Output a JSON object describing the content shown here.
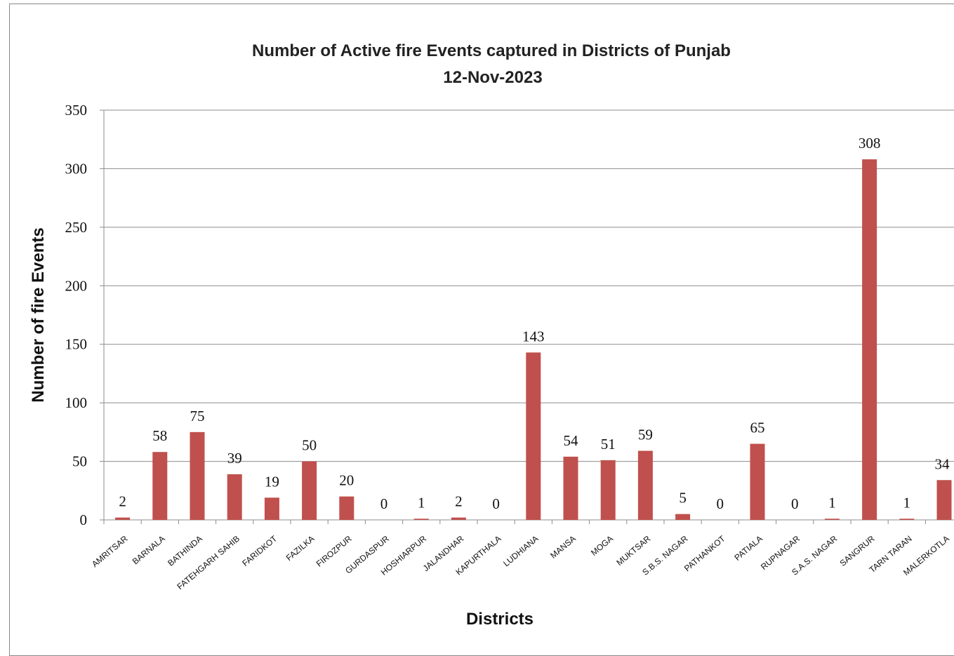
{
  "chart_data": {
    "type": "bar",
    "title": "Number of Active fire Events captured  in Districts of Punjab",
    "subtitle": "12-Nov-2023",
    "xlabel": "Districts",
    "ylabel": "Number of fire Events",
    "ylim": [
      0,
      350
    ],
    "yticks": [
      0,
      50,
      100,
      150,
      200,
      250,
      300,
      350
    ],
    "grid": true,
    "bar_color": "#c0504d",
    "categories": [
      "AMRITSAR",
      "BARNALA",
      "BATHINDA",
      "FATEHGARH SAHIB",
      "FARIDKOT",
      "FAZILKA",
      "FIROZPUR",
      "GURDASPUR",
      "HOSHIARPUR",
      "JALANDHAR",
      "KAPURTHALA",
      "LUDHIANA",
      "MANSA",
      "MOGA",
      "MUKTSAR",
      "S.B.S. NAGAR",
      "PATHANKOT",
      "PATIALA",
      "RUPNAGAR",
      "S.A.S. NAGAR",
      "SANGRUR",
      "TARN TARAN",
      "MALERKOTLA"
    ],
    "values": [
      2,
      58,
      75,
      39,
      19,
      50,
      20,
      0,
      1,
      2,
      0,
      143,
      54,
      51,
      59,
      5,
      0,
      65,
      0,
      1,
      308,
      1,
      34
    ]
  }
}
